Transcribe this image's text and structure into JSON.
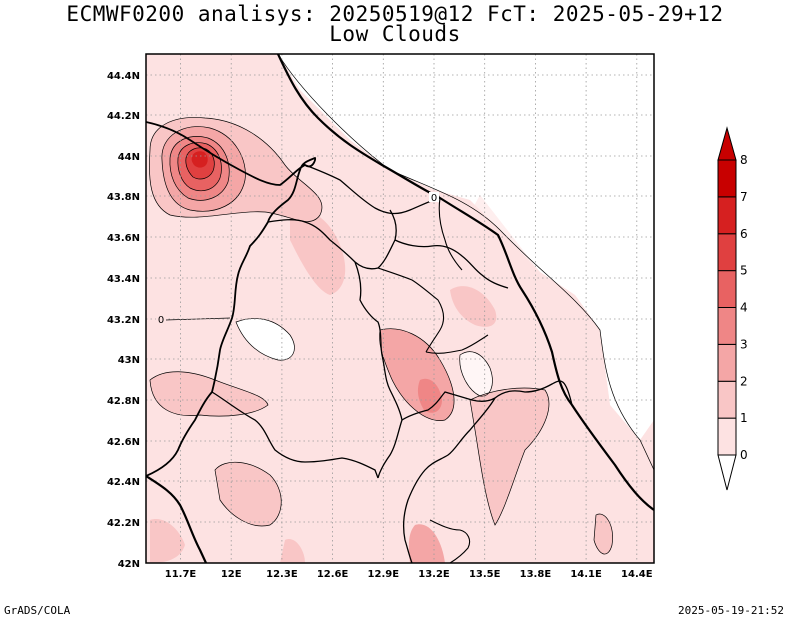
{
  "title": {
    "line1": "ECMWF0200 analisys: 20250519@12 FcT: 2025-05-29+12",
    "line2": "Low Clouds"
  },
  "footer": {
    "left": "GrADS/COLA",
    "right": "2025-05-19-21:52"
  },
  "map": {
    "lon_range": [
      11.5,
      14.5
    ],
    "lat_range": [
      42.0,
      44.5
    ],
    "lon_ticks": [
      "11.7E",
      "12E",
      "12.3E",
      "12.6E",
      "12.9E",
      "13.2E",
      "13.5E",
      "13.8E",
      "14.1E",
      "14.4E"
    ],
    "lat_ticks": [
      "42N",
      "42.2N",
      "42.4N",
      "42.6N",
      "42.8N",
      "43N",
      "43.2N",
      "43.4N",
      "43.6N",
      "43.8N",
      "44N",
      "44.2N",
      "44.4N"
    ],
    "grid": "dotted",
    "contour_labels": [
      "0",
      "0"
    ]
  },
  "colorbar": {
    "levels": [
      "0",
      "1",
      "2",
      "3",
      "4",
      "5",
      "6",
      "7",
      "8"
    ],
    "colors": [
      "#ffffff",
      "#fde2e2",
      "#f9c6c6",
      "#f4a6a6",
      "#ef8686",
      "#e86262",
      "#e04040",
      "#d62020",
      "#c80000"
    ]
  }
}
